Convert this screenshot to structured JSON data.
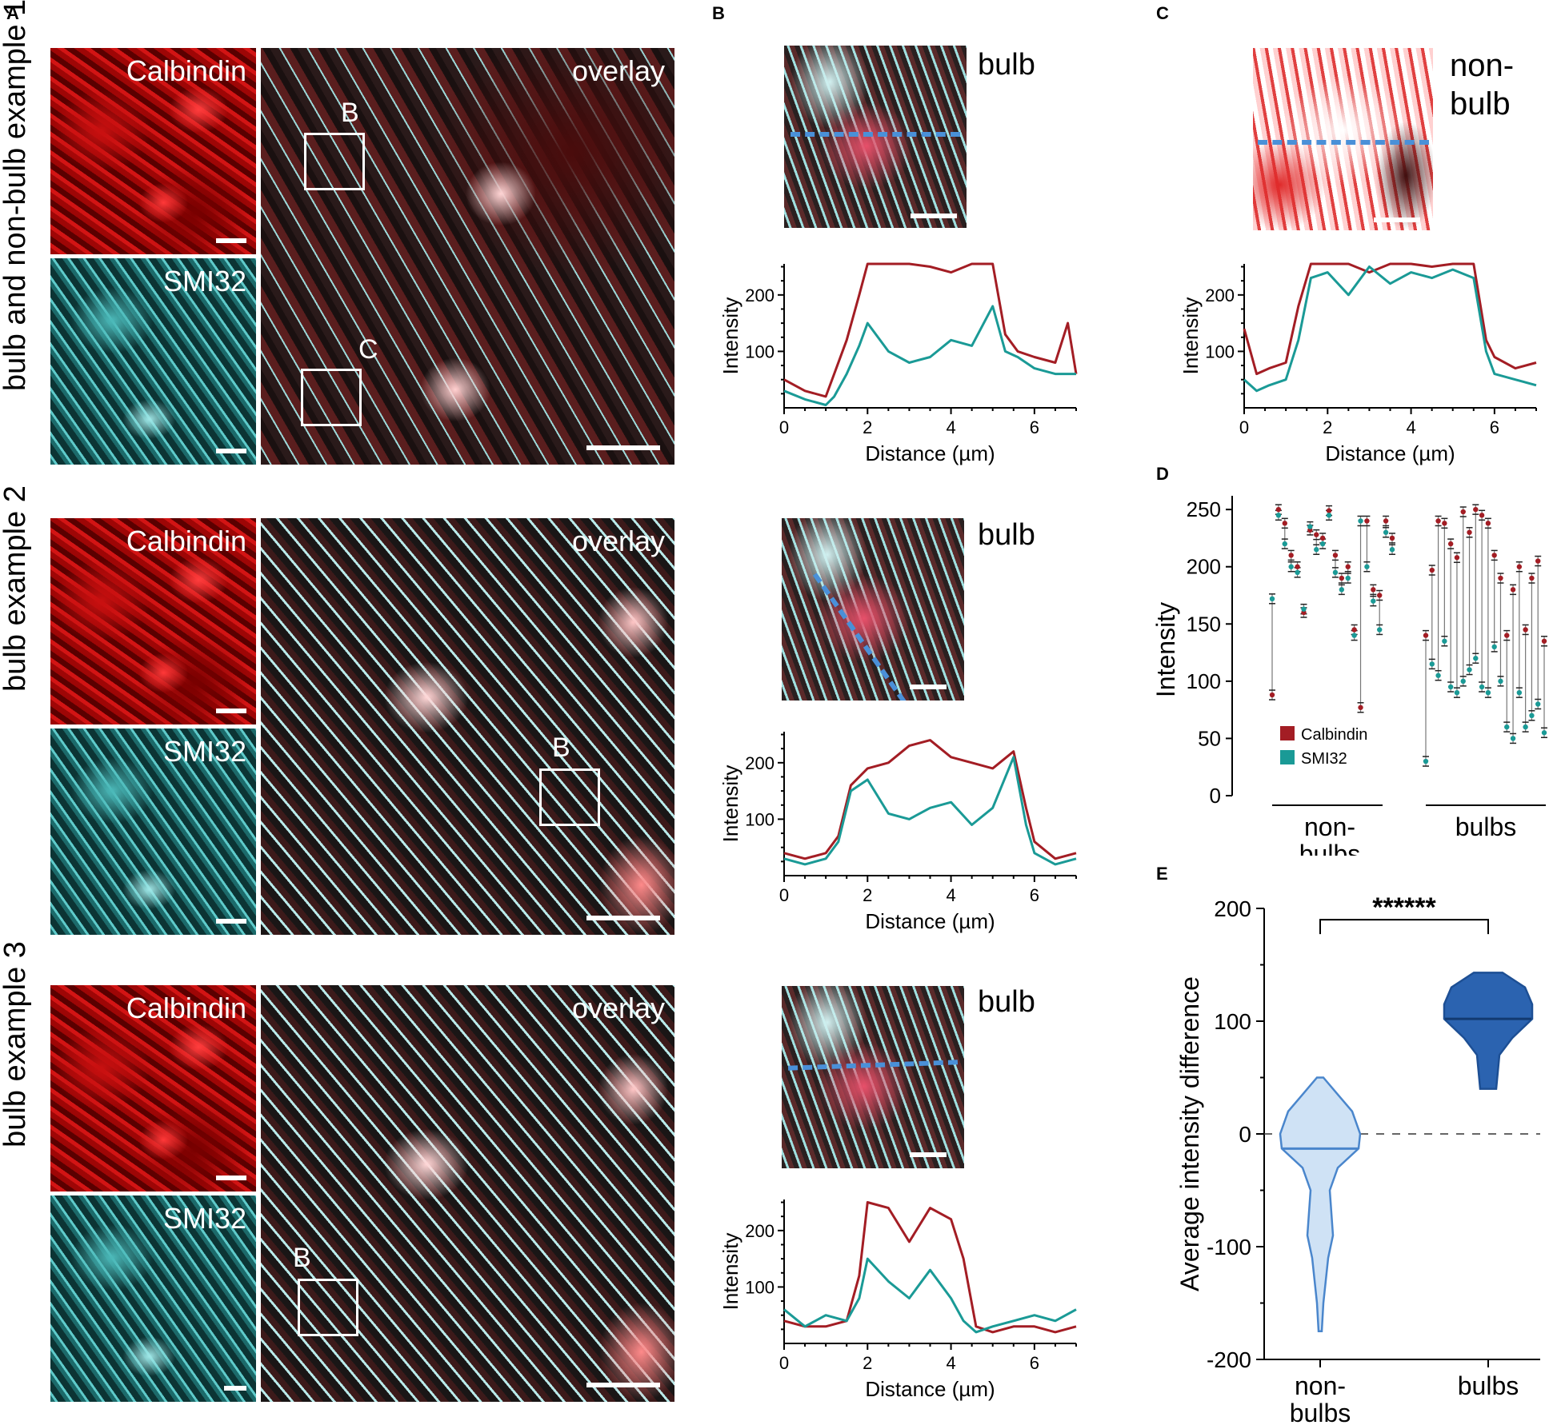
{
  "panel_letters": {
    "A": "A",
    "B": "B",
    "C": "C",
    "D": "D",
    "E": "E"
  },
  "rows": [
    {
      "label": "bulb and non-bulb example 1"
    },
    {
      "label": "bulb example 2"
    },
    {
      "label": "bulb example 3"
    }
  ],
  "image_labels": {
    "calbindin": "Calbindin",
    "smi32": "SMI32",
    "overlay": "overlay",
    "bulb": "bulb",
    "nonbulb_1": "non-",
    "nonbulb_2": "bulb",
    "box_b": "B",
    "box_c": "C"
  },
  "colors": {
    "calbindin": "#a31d24",
    "smi32": "#1a9a96",
    "dashed_line": "#4a90d8",
    "violin_nonbulbs": "#cfe2f5",
    "violin_bulbs": "#2b63b0"
  },
  "chart_data": [
    {
      "id": "B1",
      "type": "line",
      "xlabel": "Distance (µm)",
      "ylabel": "Intensity",
      "xlim": [
        0,
        7
      ],
      "ylim": [
        0,
        255
      ],
      "xticks": [
        0,
        2,
        4,
        6
      ],
      "yticks": [
        100,
        200
      ],
      "series": [
        {
          "name": "Calbindin",
          "x": [
            0,
            0.5,
            1,
            1.2,
            1.5,
            1.8,
            2,
            2.5,
            3,
            3.5,
            4,
            4.5,
            5,
            5.3,
            5.6,
            6,
            6.5,
            6.8,
            7
          ],
          "y": [
            50,
            30,
            20,
            60,
            120,
            200,
            255,
            255,
            255,
            250,
            240,
            255,
            255,
            130,
            100,
            90,
            80,
            150,
            60
          ]
        },
        {
          "name": "SMI32",
          "x": [
            0,
            0.5,
            1,
            1.2,
            1.5,
            1.8,
            2,
            2.5,
            3,
            3.5,
            4,
            4.5,
            5,
            5.3,
            5.6,
            6,
            6.5,
            7
          ],
          "y": [
            30,
            15,
            5,
            20,
            60,
            110,
            150,
            100,
            80,
            90,
            120,
            110,
            180,
            100,
            90,
            70,
            60,
            60
          ]
        }
      ]
    },
    {
      "id": "C",
      "type": "line",
      "xlabel": "Distance (µm)",
      "ylabel": "Intensity",
      "xlim": [
        0,
        7
      ],
      "ylim": [
        0,
        255
      ],
      "xticks": [
        0,
        2,
        4,
        6
      ],
      "yticks": [
        100,
        200
      ],
      "series": [
        {
          "name": "Calbindin",
          "x": [
            0,
            0.3,
            0.6,
            1,
            1.3,
            1.6,
            2,
            2.5,
            3,
            3.5,
            4,
            4.5,
            5,
            5.5,
            5.8,
            6,
            6.5,
            7
          ],
          "y": [
            140,
            60,
            70,
            80,
            180,
            255,
            255,
            255,
            240,
            255,
            255,
            250,
            255,
            255,
            120,
            90,
            70,
            80
          ]
        },
        {
          "name": "SMI32",
          "x": [
            0,
            0.3,
            0.6,
            1,
            1.3,
            1.6,
            2,
            2.5,
            3,
            3.5,
            4,
            4.5,
            5,
            5.5,
            5.8,
            6,
            6.5,
            7
          ],
          "y": [
            50,
            30,
            40,
            50,
            120,
            230,
            240,
            200,
            250,
            220,
            240,
            230,
            245,
            230,
            100,
            60,
            50,
            40
          ]
        }
      ]
    },
    {
      "id": "B2",
      "type": "line",
      "xlabel": "Distance (µm)",
      "ylabel": "Intensity",
      "xlim": [
        0,
        7
      ],
      "ylim": [
        0,
        255
      ],
      "xticks": [
        0,
        2,
        4,
        6
      ],
      "yticks": [
        100,
        200
      ],
      "series": [
        {
          "name": "Calbindin",
          "x": [
            0,
            0.5,
            1,
            1.3,
            1.6,
            2,
            2.5,
            3,
            3.5,
            4,
            4.5,
            5,
            5.5,
            5.8,
            6,
            6.5,
            7
          ],
          "y": [
            40,
            30,
            40,
            70,
            160,
            190,
            200,
            230,
            240,
            210,
            200,
            190,
            220,
            120,
            60,
            30,
            40
          ]
        },
        {
          "name": "SMI32",
          "x": [
            0,
            0.5,
            1,
            1.3,
            1.6,
            2,
            2.5,
            3,
            3.5,
            4,
            4.5,
            5,
            5.5,
            5.8,
            6,
            6.5,
            7
          ],
          "y": [
            30,
            20,
            30,
            60,
            150,
            170,
            110,
            100,
            120,
            130,
            90,
            120,
            210,
            90,
            40,
            20,
            30
          ]
        }
      ]
    },
    {
      "id": "B3",
      "type": "line",
      "xlabel": "Distance (µm)",
      "ylabel": "Intensity",
      "xlim": [
        0,
        7
      ],
      "ylim": [
        0,
        255
      ],
      "xticks": [
        0,
        2,
        4,
        6
      ],
      "yticks": [
        100,
        200
      ],
      "series": [
        {
          "name": "Calbindin",
          "x": [
            0,
            0.5,
            1,
            1.5,
            1.8,
            2,
            2.5,
            3,
            3.5,
            4,
            4.3,
            4.6,
            5,
            5.5,
            6,
            6.5,
            7
          ],
          "y": [
            40,
            30,
            30,
            40,
            120,
            250,
            240,
            180,
            240,
            220,
            150,
            30,
            20,
            30,
            30,
            20,
            30
          ]
        },
        {
          "name": "SMI32",
          "x": [
            0,
            0.5,
            1,
            1.5,
            1.8,
            2,
            2.5,
            3,
            3.5,
            4,
            4.3,
            4.6,
            5,
            5.5,
            6,
            6.5,
            7
          ],
          "y": [
            60,
            30,
            50,
            40,
            80,
            150,
            110,
            80,
            130,
            80,
            40,
            20,
            30,
            40,
            50,
            40,
            60
          ]
        }
      ]
    },
    {
      "id": "D",
      "type": "scatter",
      "ylabel": "Intensity",
      "ylim": [
        0,
        255
      ],
      "yticks": [
        0,
        50,
        100,
        150,
        200,
        250
      ],
      "groups": [
        "non-bulbs",
        "bulbs"
      ],
      "legend": [
        "Calbindin",
        "SMI32"
      ],
      "nonbulbs_calbindin": [
        88,
        250,
        238,
        210,
        200,
        160,
        232,
        228,
        225,
        249,
        210,
        190,
        200,
        145,
        77,
        240,
        180,
        175,
        240,
        225
      ],
      "nonbulbs_smi32": [
        172,
        245,
        220,
        200,
        195,
        163,
        235,
        215,
        220,
        245,
        195,
        180,
        190,
        140,
        240,
        200,
        170,
        145,
        230,
        215
      ],
      "bulbs_calbindin": [
        140,
        197,
        240,
        238,
        220,
        208,
        248,
        230,
        250,
        245,
        238,
        210,
        190,
        140,
        180,
        200,
        145,
        190,
        205,
        135
      ],
      "bulbs_smi32": [
        30,
        115,
        105,
        135,
        95,
        90,
        100,
        110,
        120,
        95,
        90,
        130,
        100,
        60,
        50,
        90,
        60,
        70,
        80,
        55
      ]
    },
    {
      "id": "E",
      "type": "violin",
      "ylabel": "Average intensity difference",
      "ylim": [
        -200,
        200
      ],
      "yticks": [
        -200,
        -100,
        0,
        100,
        200
      ],
      "categories": [
        "non-bulbs",
        "bulbs"
      ],
      "significance": "******",
      "nonbulbs": {
        "min": -175,
        "max": 50,
        "median": -13
      },
      "bulbs": {
        "min": 40,
        "max": 143,
        "median": 102
      }
    }
  ],
  "axis_categories": {
    "nonbulbs_1": "non-",
    "nonbulbs_2": "bulbs",
    "bulbs": "bulbs"
  }
}
